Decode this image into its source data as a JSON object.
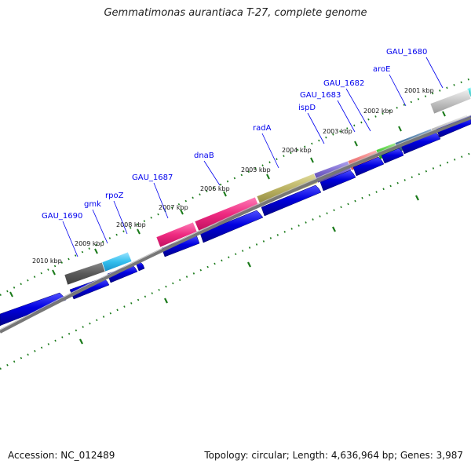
{
  "title": "Gemmatimonas aurantiaca T-27, complete genome",
  "accession": "Accession: NC_012489",
  "summary": "Topology: circular; Length: 4,636,964 bp; Genes: 3,987",
  "colors": {
    "cds": "#0000dd",
    "backbone": "#777777",
    "ticks": "#1a7a1a",
    "label": "#0000ee"
  },
  "kbp_labels": [
    "2001 kbp",
    "2002 kbp",
    "2003 kbp",
    "2004 kbp",
    "2005 kbp",
    "2006 kbp",
    "2007 kbp",
    "2008 kbp",
    "2009 kbp",
    "2010 kbp"
  ],
  "gene_labels": [
    "GAU_1680",
    "aroE",
    "GAU_1682",
    "GAU_1683",
    "ispD",
    "radA",
    "dnaB",
    "GAU_1687",
    "rpoZ",
    "gmk",
    "GAU_1690"
  ]
}
